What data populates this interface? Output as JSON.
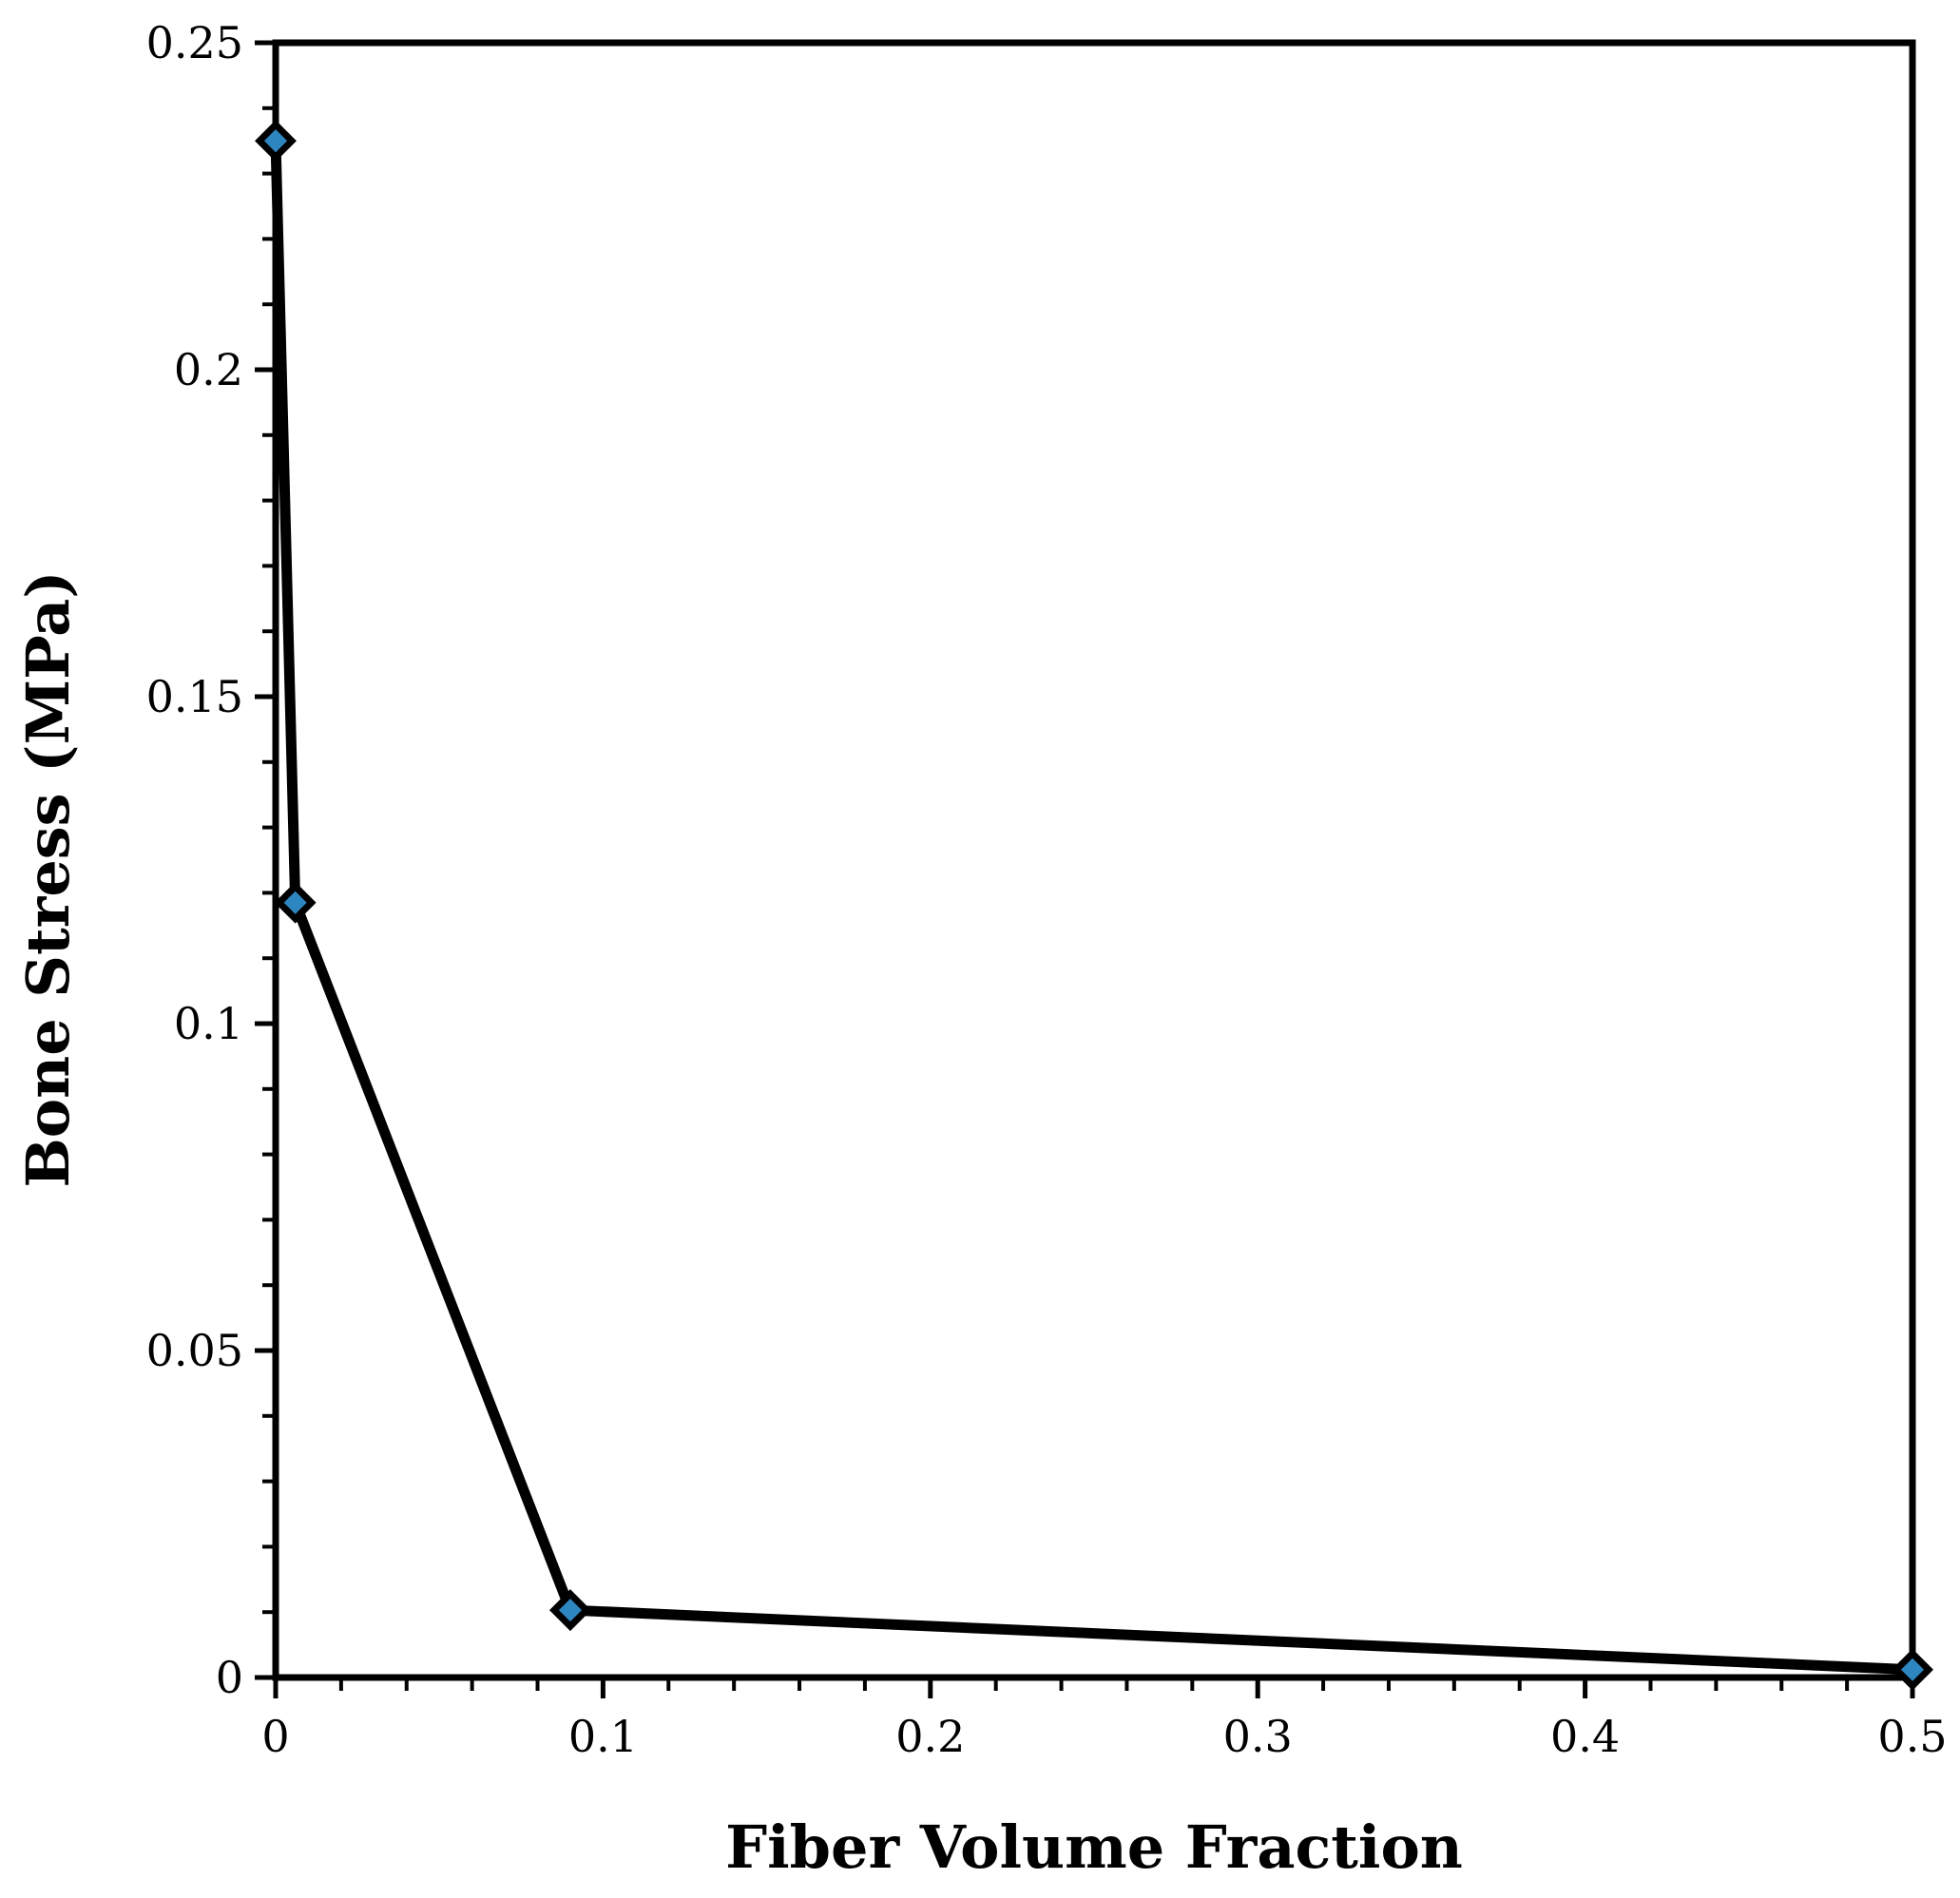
{
  "chart_data": {
    "type": "line",
    "title": "",
    "xlabel": "Fiber Volume Fraction",
    "ylabel": "Bone Stress (MPa)",
    "xlim": [
      0,
      0.5
    ],
    "ylim": [
      0,
      0.25
    ],
    "x_ticks": [
      0,
      0.1,
      0.2,
      0.3,
      0.4,
      0.5
    ],
    "x_tick_labels": [
      "0",
      "0.1",
      "0.2",
      "0.3",
      "0.4",
      "0.5"
    ],
    "y_ticks": [
      0,
      0.05,
      0.1,
      0.15,
      0.2,
      0.25
    ],
    "y_tick_labels": [
      "0",
      "0.05",
      "0.1",
      "0.15",
      "0.2",
      "0.25"
    ],
    "grid": false,
    "legend": "none",
    "line_color": "#000000",
    "marker": "diamond",
    "marker_fill": "#2e86c1",
    "series": [
      {
        "x": [
          0,
          0.006,
          0.09,
          0.5
        ],
        "y": [
          0.235,
          0.1185,
          0.0103,
          0.0012
        ]
      }
    ]
  }
}
